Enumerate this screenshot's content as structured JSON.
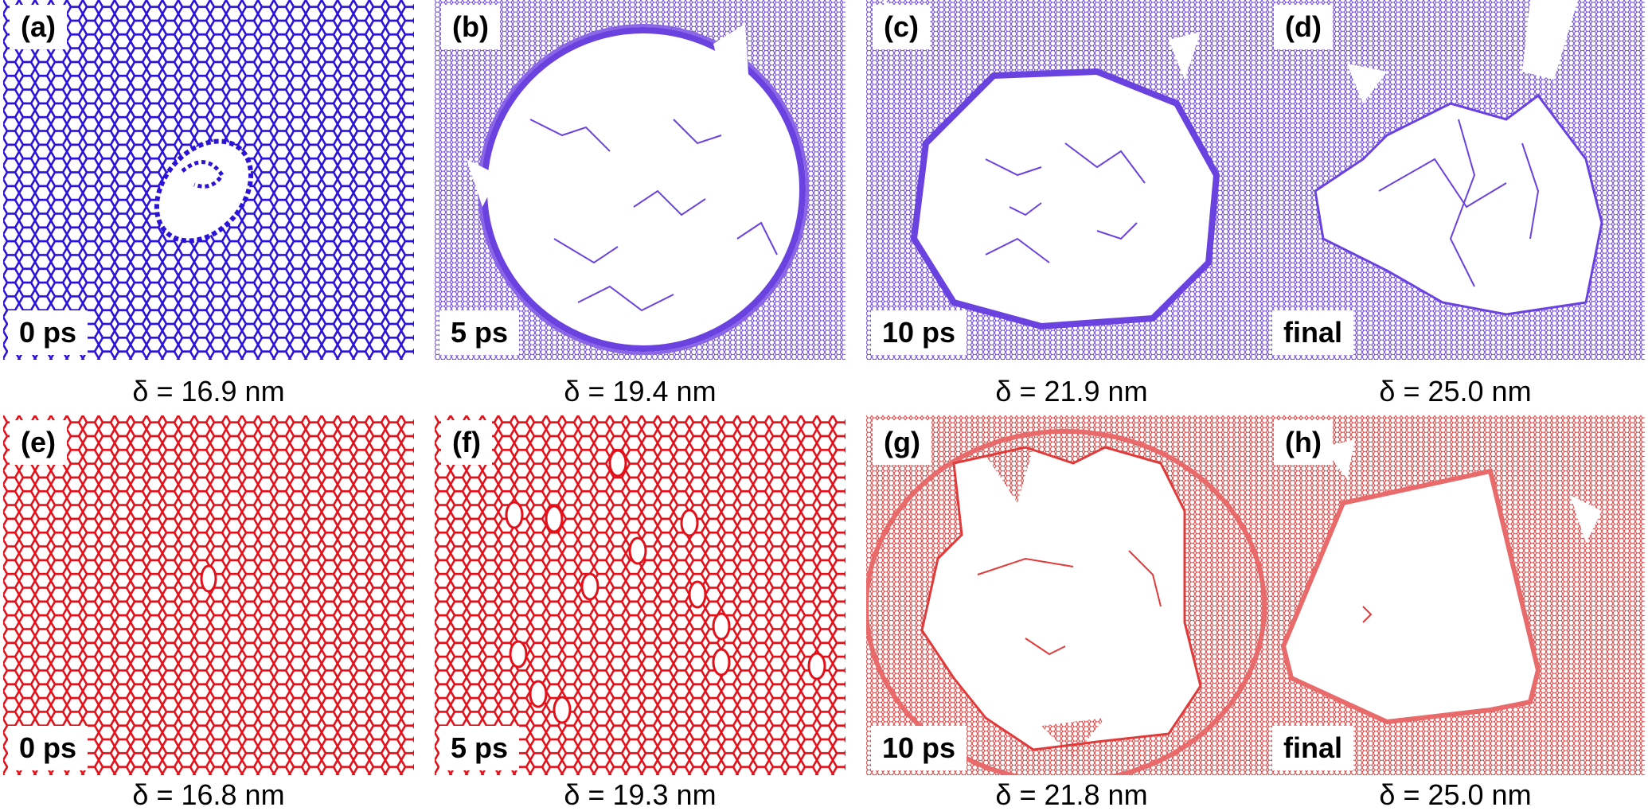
{
  "colors": {
    "blue": "#2a12d8",
    "blue_dense": "#6a42e0",
    "red": "#e3101a",
    "red_dense": "#e86a6a"
  },
  "panels": [
    {
      "letter": "(a)",
      "time": "0 ps",
      "caption": "δ = 16.9 nm",
      "color": "#2a12d8",
      "variant": "pristine-hole"
    },
    {
      "letter": "(b)",
      "time": "5 ps",
      "caption": "δ = 19.4 nm",
      "color": "#6a42e0",
      "variant": "circle"
    },
    {
      "letter": "(c)",
      "time": "10 ps",
      "caption": "δ = 21.9 nm",
      "color": "#6a42e0",
      "variant": "circle-large"
    },
    {
      "letter": "(d)",
      "time": "final",
      "caption": "δ = 25.0 nm",
      "color": "#6a42e0",
      "variant": "torn"
    },
    {
      "letter": "(e)",
      "time": "0 ps",
      "caption": "δ = 16.8 nm",
      "color": "#e3101a",
      "variant": "pristine"
    },
    {
      "letter": "(f)",
      "time": "5 ps",
      "caption": "δ = 19.3 nm",
      "color": "#e3101a",
      "variant": "pristine-voids"
    },
    {
      "letter": "(g)",
      "time": "10 ps",
      "caption": "δ = 21.8 nm",
      "color": "#e86a6a",
      "variant": "irregular"
    },
    {
      "letter": "(h)",
      "time": "final",
      "caption": "δ = 25.0 nm",
      "color": "#e86a6a",
      "variant": "polygon"
    }
  ]
}
